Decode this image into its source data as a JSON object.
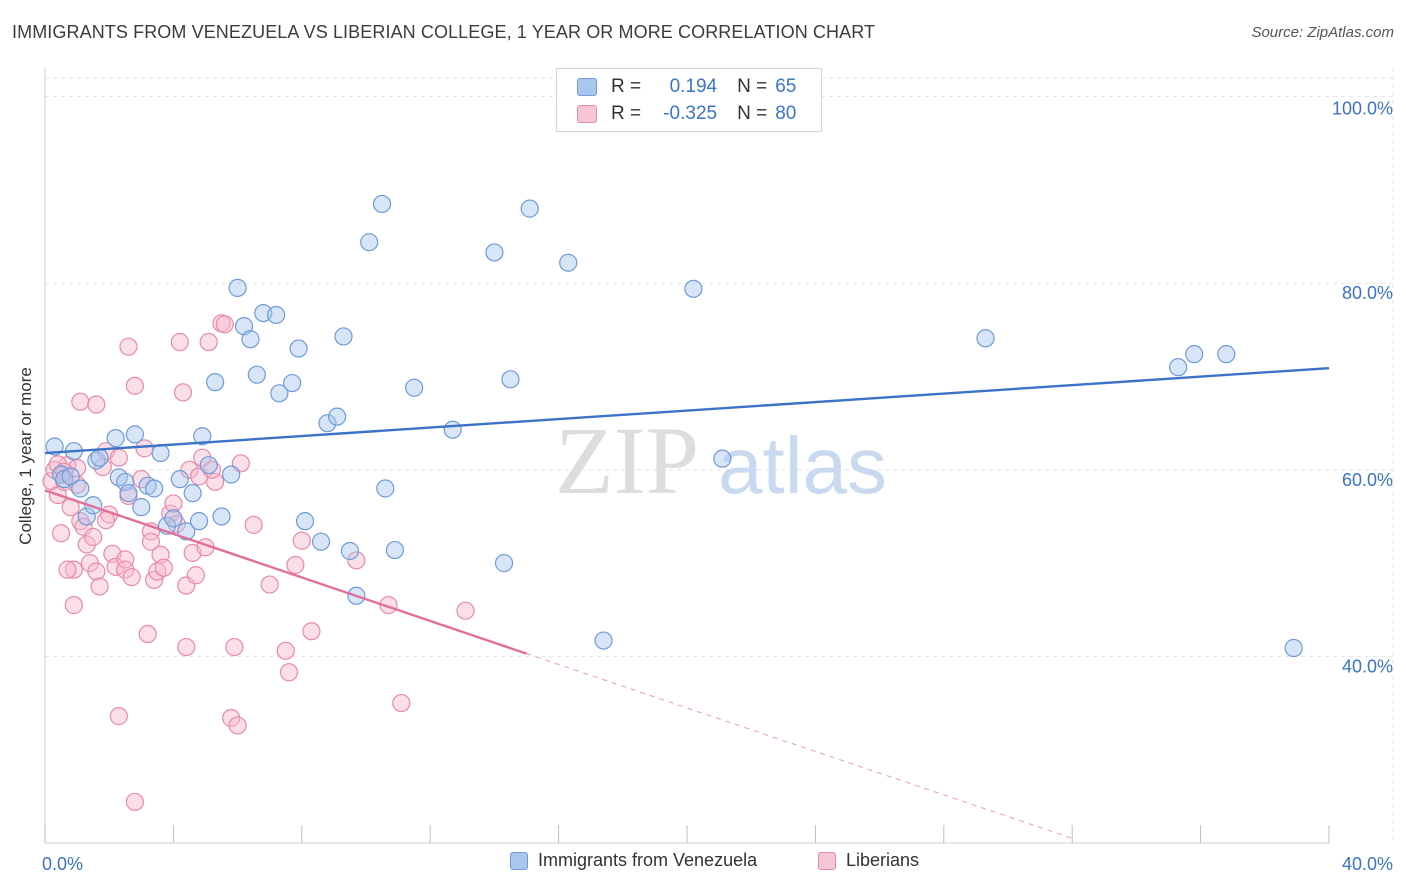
{
  "title": "IMMIGRANTS FROM VENEZUELA VS LIBERIAN COLLEGE, 1 YEAR OR MORE CORRELATION CHART",
  "source": "Source: ZipAtlas.com",
  "watermark": {
    "zip": "ZIP",
    "atlas": "atlas"
  },
  "legend": {
    "r_label": "R =",
    "n_label": "N =",
    "series": [
      {
        "name": "Immigrants from Venezuela",
        "r": "0.194",
        "n": "65"
      },
      {
        "name": "Liberians",
        "r": "-0.325",
        "n": "80"
      }
    ]
  },
  "colors": {
    "blue_fill": "#a9c6ee",
    "blue_stroke": "#6f9bd8",
    "blue_line": "#3b73c7",
    "pink_fill": "#f7b9cd",
    "pink_stroke": "#e98aa9",
    "pink_line": "#e0709a",
    "axis_text": "#3b73c7",
    "grid": "#e3e3e3"
  },
  "chart_data": {
    "type": "scatter",
    "title": "IMMIGRANTS FROM VENEZUELA VS LIBERIAN COLLEGE, 1 YEAR OR MORE CORRELATION CHART",
    "xlabel": "",
    "ylabel": "College, 1 year or more",
    "xlim": [
      0,
      40
    ],
    "ylim": [
      20,
      102
    ],
    "x_tick_labels": [
      "0.0%",
      "40.0%"
    ],
    "y_ticks": [
      40,
      60,
      80,
      100
    ],
    "y_tick_labels": [
      "40.0%",
      "60.0%",
      "80.0%",
      "100.0%"
    ],
    "grid": true,
    "legend_position": "top-center",
    "series": [
      {
        "name": "Immigrants from Venezuela",
        "color": "#6f9bd8",
        "trend": {
          "x": [
            0,
            40
          ],
          "y": [
            61.8,
            70.9
          ],
          "dashed_from": null
        },
        "points": [
          [
            0.3,
            62.5
          ],
          [
            0.5,
            59.5
          ],
          [
            0.6,
            59.0
          ],
          [
            0.8,
            59.3
          ],
          [
            0.9,
            62.0
          ],
          [
            1.1,
            58.0
          ],
          [
            1.3,
            55.0
          ],
          [
            1.5,
            56.2
          ],
          [
            1.6,
            61.0
          ],
          [
            1.7,
            61.3
          ],
          [
            2.2,
            63.4
          ],
          [
            2.3,
            59.2
          ],
          [
            2.5,
            58.7
          ],
          [
            2.6,
            57.5
          ],
          [
            2.8,
            63.8
          ],
          [
            3.0,
            56.0
          ],
          [
            3.2,
            58.3
          ],
          [
            3.4,
            58.0
          ],
          [
            3.6,
            61.8
          ],
          [
            3.8,
            54.0
          ],
          [
            4.0,
            54.8
          ],
          [
            4.2,
            59.0
          ],
          [
            4.4,
            53.4
          ],
          [
            4.6,
            57.5
          ],
          [
            4.8,
            54.5
          ],
          [
            4.9,
            63.6
          ],
          [
            5.1,
            60.5
          ],
          [
            5.3,
            69.4
          ],
          [
            5.5,
            55.0
          ],
          [
            5.8,
            59.5
          ],
          [
            6.0,
            79.5
          ],
          [
            6.2,
            75.4
          ],
          [
            6.4,
            74.0
          ],
          [
            6.6,
            70.2
          ],
          [
            6.8,
            76.8
          ],
          [
            7.2,
            76.6
          ],
          [
            7.3,
            68.2
          ],
          [
            7.7,
            69.3
          ],
          [
            7.9,
            73.0
          ],
          [
            8.1,
            54.5
          ],
          [
            8.6,
            52.3
          ],
          [
            8.8,
            65.0
          ],
          [
            9.1,
            65.7
          ],
          [
            9.3,
            74.3
          ],
          [
            9.5,
            51.3
          ],
          [
            9.7,
            46.5
          ],
          [
            10.1,
            84.4
          ],
          [
            10.5,
            88.5
          ],
          [
            10.6,
            58.0
          ],
          [
            10.9,
            51.4
          ],
          [
            11.5,
            68.8
          ],
          [
            12.7,
            64.3
          ],
          [
            14.0,
            83.3
          ],
          [
            14.3,
            50.0
          ],
          [
            14.5,
            69.7
          ],
          [
            15.1,
            88.0
          ],
          [
            16.3,
            82.2
          ],
          [
            17.4,
            41.7
          ],
          [
            20.2,
            79.4
          ],
          [
            21.1,
            61.2
          ],
          [
            29.3,
            74.1
          ],
          [
            35.3,
            71.0
          ],
          [
            35.8,
            72.4
          ],
          [
            36.8,
            72.4
          ],
          [
            38.9,
            40.9
          ]
        ]
      },
      {
        "name": "Liberians",
        "color": "#e98aa9",
        "trend": {
          "x": [
            0,
            15
          ],
          "y": [
            57.8,
            40.3
          ],
          "dashed_to": {
            "x": 32,
            "y": 20.5
          }
        },
        "points": [
          [
            0.2,
            58.8
          ],
          [
            0.3,
            60.0
          ],
          [
            0.4,
            57.3
          ],
          [
            0.5,
            53.2
          ],
          [
            0.6,
            58.7
          ],
          [
            0.7,
            60.5
          ],
          [
            0.8,
            56.0
          ],
          [
            0.9,
            49.3
          ],
          [
            0.9,
            45.5
          ],
          [
            1.0,
            60.2
          ],
          [
            1.1,
            67.3
          ],
          [
            1.1,
            54.5
          ],
          [
            1.2,
            53.9
          ],
          [
            1.3,
            52.0
          ],
          [
            1.4,
            50.0
          ],
          [
            1.5,
            52.8
          ],
          [
            1.6,
            49.1
          ],
          [
            1.6,
            67.0
          ],
          [
            1.7,
            47.5
          ],
          [
            1.8,
            60.3
          ],
          [
            1.9,
            62.0
          ],
          [
            2.0,
            55.2
          ],
          [
            2.1,
            51.0
          ],
          [
            2.2,
            49.6
          ],
          [
            2.3,
            33.6
          ],
          [
            2.3,
            61.3
          ],
          [
            2.5,
            50.4
          ],
          [
            2.5,
            49.3
          ],
          [
            2.6,
            73.2
          ],
          [
            2.6,
            57.2
          ],
          [
            2.8,
            69.0
          ],
          [
            2.8,
            24.4
          ],
          [
            3.0,
            59.0
          ],
          [
            3.1,
            62.3
          ],
          [
            3.2,
            42.4
          ],
          [
            3.3,
            53.4
          ],
          [
            3.3,
            52.3
          ],
          [
            3.4,
            48.2
          ],
          [
            3.5,
            49.1
          ],
          [
            3.6,
            50.9
          ],
          [
            3.9,
            55.3
          ],
          [
            4.0,
            56.4
          ],
          [
            4.1,
            54.2
          ],
          [
            4.2,
            73.7
          ],
          [
            4.3,
            68.3
          ],
          [
            4.4,
            41.0
          ],
          [
            4.4,
            47.6
          ],
          [
            4.5,
            60.0
          ],
          [
            4.6,
            51.1
          ],
          [
            4.7,
            48.7
          ],
          [
            4.8,
            59.3
          ],
          [
            4.9,
            61.3
          ],
          [
            5.0,
            51.7
          ],
          [
            5.1,
            73.7
          ],
          [
            5.3,
            58.7
          ],
          [
            5.5,
            75.7
          ],
          [
            5.6,
            75.6
          ],
          [
            5.8,
            33.4
          ],
          [
            5.9,
            41.0
          ],
          [
            6.0,
            32.6
          ],
          [
            6.1,
            60.7
          ],
          [
            6.5,
            54.1
          ],
          [
            7.0,
            47.7
          ],
          [
            7.5,
            40.6
          ],
          [
            7.6,
            38.3
          ],
          [
            7.8,
            49.8
          ],
          [
            8.0,
            52.4
          ],
          [
            8.3,
            42.7
          ],
          [
            9.7,
            50.3
          ],
          [
            10.7,
            45.5
          ],
          [
            11.1,
            35.0
          ],
          [
            13.1,
            44.9
          ],
          [
            0.4,
            60.6
          ],
          [
            0.6,
            59.8
          ],
          [
            1.0,
            58.4
          ],
          [
            0.7,
            49.3
          ],
          [
            1.9,
            54.6
          ],
          [
            2.7,
            48.5
          ],
          [
            3.7,
            49.5
          ],
          [
            5.2,
            60.0
          ]
        ]
      }
    ]
  }
}
